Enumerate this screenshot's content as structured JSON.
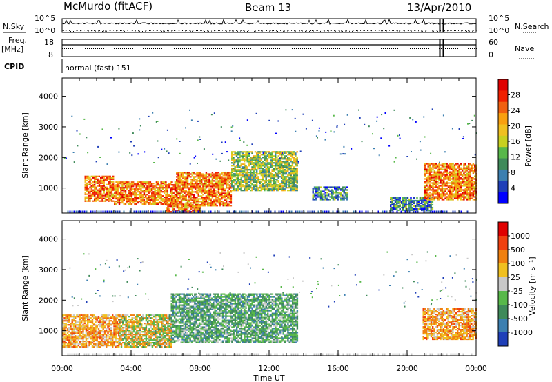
{
  "header": {
    "station": "McMurdo (fitACF)",
    "beam": "Beam 13",
    "date": "13/Apr/2010"
  },
  "top_panels": {
    "nsky_label": "N.Sky",
    "nsearch_label": "N.Search",
    "noise_ticks_left": [
      "10^5",
      "10^0"
    ],
    "noise_ticks_right": [
      "10^5",
      "10^0"
    ],
    "freq_label": "Freq.",
    "freq_unit": "[MHz]",
    "freq_ticks": [
      "18",
      "8"
    ],
    "nave_label": "Nave",
    "nave_ticks": [
      "60",
      "0"
    ],
    "cpid_label": "CPID",
    "cpid_value": "normal (fast) 151"
  },
  "chart_data": [
    {
      "type": "heatmap",
      "name": "power",
      "ylabel": "Slant Range [km]",
      "ylim": [
        180,
        4600
      ],
      "yticks": [
        "1000",
        "2000",
        "3000",
        "4000"
      ],
      "xlim_hours": [
        0,
        24
      ],
      "xticks": [
        "00:00",
        "04:00",
        "08:00",
        "12:00",
        "16:00",
        "20:00",
        "00:00"
      ],
      "colorbar": {
        "label": "Power [dB]",
        "ticks": [
          "4",
          "8",
          "12",
          "16",
          "20",
          "24",
          "28"
        ],
        "colors": [
          "#0000ff",
          "#1f3fb8",
          "#3c7fb0",
          "#3f8a5a",
          "#58b84a",
          "#c8d020",
          "#f0c020",
          "#f8a010",
          "#f06010",
          "#f02000",
          "#e00000"
        ]
      },
      "echo_regions": [
        {
          "start_hr": 1.3,
          "end_hr": 3.0,
          "range_lo_km": 550,
          "range_hi_km": 1400,
          "level": "strong"
        },
        {
          "start_hr": 3.0,
          "end_hr": 6.6,
          "range_lo_km": 450,
          "range_hi_km": 1200,
          "level": "strong"
        },
        {
          "start_hr": 6.6,
          "end_hr": 9.8,
          "range_lo_km": 400,
          "range_hi_km": 1500,
          "level": "strong"
        },
        {
          "start_hr": 9.8,
          "end_hr": 13.6,
          "range_lo_km": 900,
          "range_hi_km": 2200,
          "level": "medium"
        },
        {
          "start_hr": 6.0,
          "end_hr": 8.0,
          "range_lo_km": 200,
          "range_hi_km": 450,
          "level": "strong"
        },
        {
          "start_hr": 14.5,
          "end_hr": 16.5,
          "range_lo_km": 600,
          "range_hi_km": 1050,
          "level": "weak"
        },
        {
          "start_hr": 19.0,
          "end_hr": 21.5,
          "range_lo_km": 250,
          "range_hi_km": 700,
          "level": "weak"
        },
        {
          "start_hr": 21.0,
          "end_hr": 24.0,
          "range_lo_km": 600,
          "range_hi_km": 1800,
          "level": "strong"
        }
      ]
    },
    {
      "type": "heatmap",
      "name": "velocity",
      "ylabel": "Slant Range [km]",
      "ylim": [
        180,
        4600
      ],
      "yticks": [
        "1000",
        "2000",
        "3000",
        "4000"
      ],
      "xlim_hours": [
        0,
        24
      ],
      "xticks": [
        "00:00",
        "04:00",
        "08:00",
        "12:00",
        "16:00",
        "20:00",
        "00:00"
      ],
      "xlabel": "Time UT",
      "colorbar": {
        "label": "Velocity [m s⁻¹]",
        "ticks": [
          "1000",
          "500",
          "100",
          "25",
          "-25",
          "-100",
          "-500",
          "-1000"
        ],
        "colors": [
          "#1f3fb8",
          "#3c7fb0",
          "#3f8a5a",
          "#58b84a",
          "#c8c8c8",
          "#f0c020",
          "#f08010",
          "#f04010",
          "#e00000"
        ]
      },
      "echo_regions": [
        {
          "start_hr": 0.0,
          "end_hr": 3.3,
          "range_lo_km": 450,
          "range_hi_km": 1500,
          "level": "orange"
        },
        {
          "start_hr": 3.3,
          "end_hr": 6.3,
          "range_lo_km": 450,
          "range_hi_km": 1500,
          "level": "mixed"
        },
        {
          "start_hr": 6.3,
          "end_hr": 13.6,
          "range_lo_km": 600,
          "range_hi_km": 2200,
          "level": "green"
        },
        {
          "start_hr": 20.9,
          "end_hr": 24.0,
          "range_lo_km": 700,
          "range_hi_km": 1700,
          "level": "orange"
        }
      ]
    }
  ]
}
